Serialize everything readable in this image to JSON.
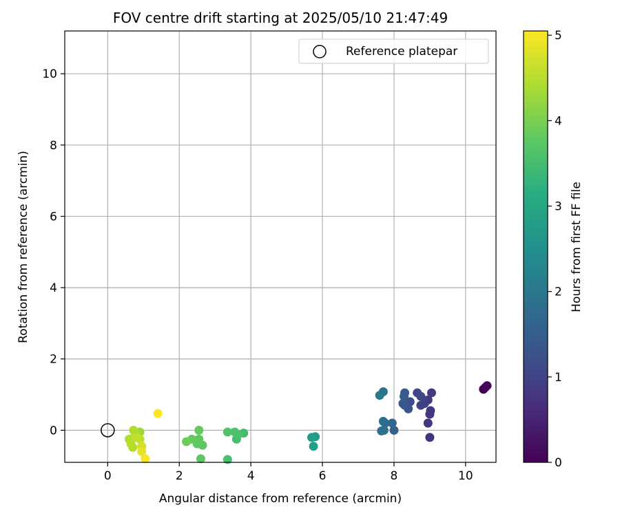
{
  "chart_data": {
    "type": "scatter",
    "title": "FOV centre drift starting at 2025/05/10 21:47:49",
    "xlabel": "Angular distance from reference (arcmin)",
    "ylabel": "Rotation from reference (arcmin)",
    "xlim": [
      -1.2,
      10.85
    ],
    "ylim": [
      -0.9,
      11.2
    ],
    "xticks": [
      0,
      2,
      4,
      6,
      8,
      10
    ],
    "yticks": [
      0,
      2,
      4,
      6,
      8,
      10
    ],
    "grid": true,
    "legend": {
      "placement": "top-right",
      "entries": [
        "Reference platepar"
      ]
    },
    "reference_point": {
      "x": 0,
      "y": 0,
      "label": "Reference platepar"
    },
    "colorbar": {
      "label": "Hours from first FF file",
      "range": [
        0,
        5.05
      ],
      "ticks": [
        0,
        1,
        2,
        3,
        4,
        5
      ],
      "colormap": "viridis"
    },
    "series": [
      {
        "color_variable": "Hours from first FF file",
        "points": [
          {
            "x": 10.5,
            "y": 1.15,
            "c": 0.0
          },
          {
            "x": 10.55,
            "y": 1.2,
            "c": 0.02
          },
          {
            "x": 10.6,
            "y": 1.25,
            "c": 0.05
          },
          {
            "x": 9.0,
            "y": -0.2,
            "c": 0.75
          },
          {
            "x": 8.95,
            "y": 0.2,
            "c": 0.8
          },
          {
            "x": 9.0,
            "y": 0.45,
            "c": 0.8
          },
          {
            "x": 9.02,
            "y": 0.55,
            "c": 0.82
          },
          {
            "x": 9.05,
            "y": 1.05,
            "c": 0.85
          },
          {
            "x": 8.95,
            "y": 0.85,
            "c": 0.9
          },
          {
            "x": 8.85,
            "y": 0.75,
            "c": 0.95
          },
          {
            "x": 8.75,
            "y": 0.7,
            "c": 1.0
          },
          {
            "x": 8.75,
            "y": 0.95,
            "c": 1.05
          },
          {
            "x": 8.65,
            "y": 1.05,
            "c": 1.1
          },
          {
            "x": 8.45,
            "y": 0.8,
            "c": 1.25
          },
          {
            "x": 8.4,
            "y": 0.6,
            "c": 1.3
          },
          {
            "x": 8.3,
            "y": 0.7,
            "c": 1.35
          },
          {
            "x": 8.25,
            "y": 0.75,
            "c": 1.4
          },
          {
            "x": 8.3,
            "y": 1.05,
            "c": 1.45
          },
          {
            "x": 8.28,
            "y": 0.95,
            "c": 1.5
          },
          {
            "x": 8.0,
            "y": 0.0,
            "c": 1.6
          },
          {
            "x": 7.95,
            "y": 0.2,
            "c": 1.65
          },
          {
            "x": 7.75,
            "y": 0.2,
            "c": 1.75
          },
          {
            "x": 7.7,
            "y": 0.25,
            "c": 1.8
          },
          {
            "x": 7.72,
            "y": 0.0,
            "c": 1.85
          },
          {
            "x": 7.65,
            "y": -0.02,
            "c": 1.85
          },
          {
            "x": 7.7,
            "y": 1.08,
            "c": 1.9
          },
          {
            "x": 7.6,
            "y": 0.98,
            "c": 2.0
          },
          {
            "x": 5.8,
            "y": -0.18,
            "c": 2.75
          },
          {
            "x": 5.7,
            "y": -0.2,
            "c": 2.8
          },
          {
            "x": 5.75,
            "y": -0.45,
            "c": 2.85
          },
          {
            "x": 3.8,
            "y": -0.08,
            "c": 3.5
          },
          {
            "x": 3.6,
            "y": -0.25,
            "c": 3.55
          },
          {
            "x": 3.65,
            "y": -0.12,
            "c": 3.6
          },
          {
            "x": 3.55,
            "y": -0.05,
            "c": 3.6
          },
          {
            "x": 3.35,
            "y": -0.05,
            "c": 3.65
          },
          {
            "x": 3.35,
            "y": -0.82,
            "c": 3.6
          },
          {
            "x": 2.65,
            "y": -0.42,
            "c": 3.75
          },
          {
            "x": 2.6,
            "y": -0.8,
            "c": 3.75
          },
          {
            "x": 2.55,
            "y": -0.25,
            "c": 3.8
          },
          {
            "x": 2.5,
            "y": -0.38,
            "c": 3.8
          },
          {
            "x": 2.55,
            "y": 0.0,
            "c": 3.85
          },
          {
            "x": 2.35,
            "y": -0.25,
            "c": 3.85
          },
          {
            "x": 2.2,
            "y": -0.32,
            "c": 3.9
          },
          {
            "x": 0.9,
            "y": -0.05,
            "c": 4.3
          },
          {
            "x": 0.85,
            "y": -0.12,
            "c": 4.35
          },
          {
            "x": 0.75,
            "y": -0.05,
            "c": 4.4
          },
          {
            "x": 0.72,
            "y": 0.0,
            "c": 4.45
          },
          {
            "x": 0.6,
            "y": -0.25,
            "c": 4.45
          },
          {
            "x": 0.65,
            "y": -0.38,
            "c": 4.5
          },
          {
            "x": 0.7,
            "y": -0.48,
            "c": 4.5
          },
          {
            "x": 0.9,
            "y": -0.25,
            "c": 4.55
          },
          {
            "x": 0.8,
            "y": -0.2,
            "c": 4.6
          },
          {
            "x": 0.95,
            "y": -0.45,
            "c": 4.7
          },
          {
            "x": 0.95,
            "y": -0.6,
            "c": 4.85
          },
          {
            "x": 1.05,
            "y": -0.8,
            "c": 5.0
          },
          {
            "x": 1.4,
            "y": 0.47,
            "c": 5.05
          }
        ]
      }
    ]
  }
}
